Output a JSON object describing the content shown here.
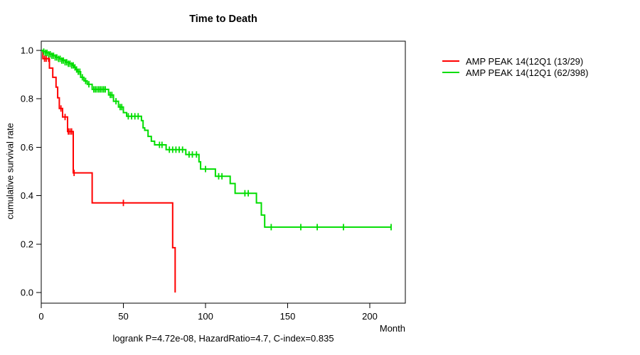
{
  "header": {
    "title": "Time to Death"
  },
  "chart_data": {
    "type": "line",
    "subtype": "kaplan-meier-survival",
    "title": "Time to Death",
    "xlabel": "Month",
    "ylabel": "cumulative survival rate",
    "annotation": "logrank P=4.72e-08, HazardRatio=4.7, C-index=0.835",
    "x_ticks": [
      0,
      50,
      100,
      150,
      200
    ],
    "y_ticks": [
      "0.0",
      "0.2",
      "0.4",
      "0.6",
      "0.8",
      "1.0"
    ],
    "xlim": [
      0,
      221
    ],
    "ylim": [
      0,
      1
    ],
    "grid": false,
    "legend_position": "right-outside",
    "axis_color": "#000000",
    "series": [
      {
        "name": "AMP PEAK 14(12Q1 (13/29)",
        "color": "#ff0000",
        "steps": [
          [
            0,
            1.0
          ],
          [
            1,
            0.966
          ],
          [
            5,
            0.927
          ],
          [
            7,
            0.889
          ],
          [
            9,
            0.848
          ],
          [
            10,
            0.804
          ],
          [
            11,
            0.76
          ],
          [
            13,
            0.725
          ],
          [
            16,
            0.665
          ],
          [
            19.5,
            0.494
          ],
          [
            31,
            0.37
          ],
          [
            80,
            0.185
          ],
          [
            81.5,
            0.0
          ]
        ],
        "censors": [
          [
            2,
            0.966
          ],
          [
            3,
            0.966
          ],
          [
            4.5,
            0.966
          ],
          [
            12,
            0.76
          ],
          [
            14.5,
            0.725
          ],
          [
            16.5,
            0.665
          ],
          [
            17.5,
            0.665
          ],
          [
            18.5,
            0.665
          ],
          [
            20,
            0.494
          ],
          [
            50,
            0.37
          ]
        ]
      },
      {
        "name": "AMP PEAK 14(12Q1 (62/398)",
        "color": "#00dd00",
        "steps": [
          [
            0,
            1.0
          ],
          [
            1,
            0.995
          ],
          [
            3,
            0.99
          ],
          [
            5,
            0.984
          ],
          [
            7,
            0.978
          ],
          [
            9,
            0.971
          ],
          [
            11,
            0.965
          ],
          [
            13,
            0.958
          ],
          [
            15,
            0.951
          ],
          [
            17,
            0.945
          ],
          [
            19,
            0.938
          ],
          [
            20,
            0.93
          ],
          [
            21,
            0.921
          ],
          [
            22,
            0.912
          ],
          [
            24,
            0.889
          ],
          [
            26,
            0.874
          ],
          [
            28,
            0.86
          ],
          [
            31,
            0.839
          ],
          [
            41,
            0.816
          ],
          [
            44,
            0.79
          ],
          [
            47,
            0.766
          ],
          [
            50,
            0.743
          ],
          [
            52,
            0.728
          ],
          [
            61,
            0.71
          ],
          [
            62,
            0.68
          ],
          [
            63,
            0.67
          ],
          [
            65,
            0.645
          ],
          [
            67,
            0.625
          ],
          [
            69,
            0.61
          ],
          [
            76,
            0.59
          ],
          [
            88,
            0.57
          ],
          [
            96,
            0.54
          ],
          [
            97,
            0.51
          ],
          [
            106,
            0.48
          ],
          [
            115,
            0.45
          ],
          [
            118,
            0.41
          ],
          [
            131,
            0.37
          ],
          [
            134,
            0.32
          ],
          [
            136,
            0.27
          ],
          [
            213,
            0.27
          ]
        ],
        "censors": [
          [
            1.5,
            0.995
          ],
          [
            2.5,
            0.99
          ],
          [
            3.5,
            0.99
          ],
          [
            4.5,
            0.984
          ],
          [
            5.5,
            0.984
          ],
          [
            6.5,
            0.978
          ],
          [
            7.5,
            0.978
          ],
          [
            8.5,
            0.971
          ],
          [
            9.5,
            0.971
          ],
          [
            10.5,
            0.965
          ],
          [
            11.5,
            0.965
          ],
          [
            12.5,
            0.958
          ],
          [
            13.5,
            0.958
          ],
          [
            14.5,
            0.951
          ],
          [
            15.5,
            0.951
          ],
          [
            16.5,
            0.945
          ],
          [
            17.5,
            0.945
          ],
          [
            18.5,
            0.938
          ],
          [
            19.5,
            0.938
          ],
          [
            20.5,
            0.93
          ],
          [
            21.5,
            0.921
          ],
          [
            22.5,
            0.912
          ],
          [
            23.5,
            0.912
          ],
          [
            25,
            0.889
          ],
          [
            27,
            0.874
          ],
          [
            29,
            0.86
          ],
          [
            32,
            0.839
          ],
          [
            33,
            0.839
          ],
          [
            34,
            0.839
          ],
          [
            35,
            0.839
          ],
          [
            36,
            0.839
          ],
          [
            37,
            0.839
          ],
          [
            38,
            0.839
          ],
          [
            39,
            0.839
          ],
          [
            42,
            0.816
          ],
          [
            43,
            0.816
          ],
          [
            45.5,
            0.79
          ],
          [
            48,
            0.766
          ],
          [
            49,
            0.766
          ],
          [
            53,
            0.728
          ],
          [
            55,
            0.728
          ],
          [
            57,
            0.728
          ],
          [
            59,
            0.728
          ],
          [
            72,
            0.61
          ],
          [
            73.5,
            0.61
          ],
          [
            78,
            0.59
          ],
          [
            80,
            0.59
          ],
          [
            82,
            0.59
          ],
          [
            84,
            0.59
          ],
          [
            86,
            0.59
          ],
          [
            90,
            0.57
          ],
          [
            92,
            0.57
          ],
          [
            94.5,
            0.57
          ],
          [
            100,
            0.51
          ],
          [
            108,
            0.48
          ],
          [
            110,
            0.48
          ],
          [
            124,
            0.41
          ],
          [
            126,
            0.41
          ],
          [
            140,
            0.27
          ],
          [
            158,
            0.27
          ],
          [
            168,
            0.27
          ],
          [
            184,
            0.27
          ],
          [
            213,
            0.27
          ]
        ]
      }
    ]
  }
}
